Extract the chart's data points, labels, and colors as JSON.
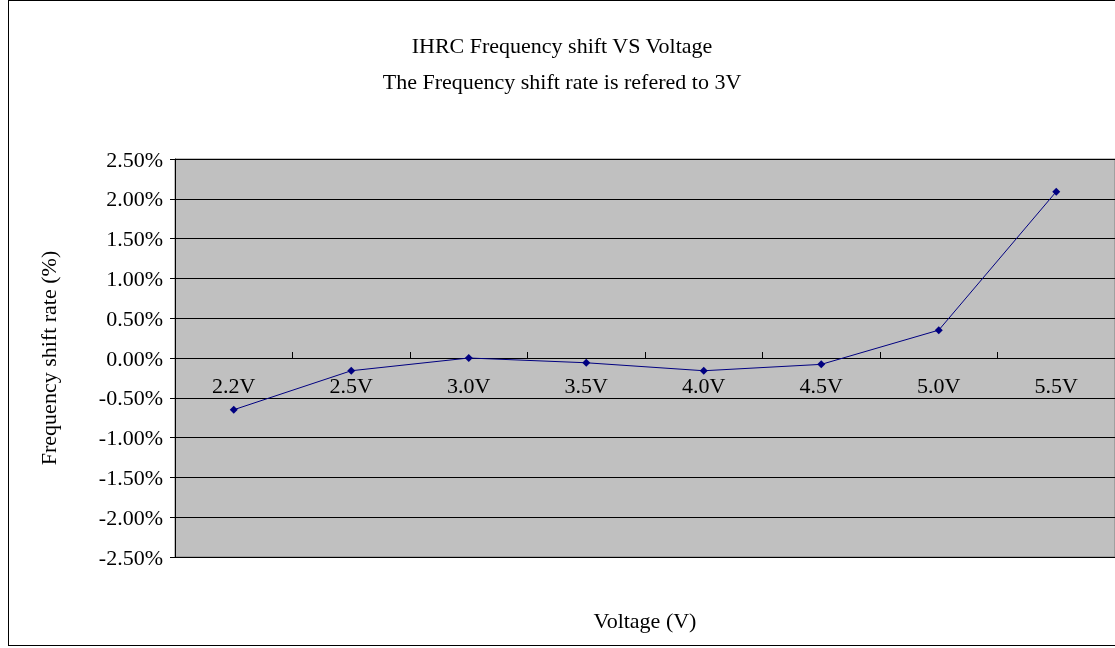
{
  "chart_data": {
    "type": "line",
    "title": "IHRC Frequency shift VS Voltage",
    "subtitle": "The Frequency shift rate is refered to 3V",
    "xlabel": "Voltage (V)",
    "ylabel": "Frequency shift rate (%)",
    "categories": [
      "2.2V",
      "2.5V",
      "3.0V",
      "3.5V",
      "4.0V",
      "4.5V",
      "5.0V",
      "5.5V"
    ],
    "series": [
      {
        "color": "#000080",
        "values": [
          -0.65,
          -0.16,
          0,
          -0.06,
          -0.16,
          -0.08,
          0.35,
          2.09
        ]
      }
    ],
    "ylim": [
      -2.5,
      2.5
    ],
    "yticks": [
      {
        "value": -2.5,
        "label": "-2.50%"
      },
      {
        "value": -2,
        "label": "-2.00%"
      },
      {
        "value": -1.5,
        "label": "-1.50%"
      },
      {
        "value": -1,
        "label": "-1.00%"
      },
      {
        "value": -0.5,
        "label": "-0.50%"
      },
      {
        "value": 0,
        "label": "0.00%"
      },
      {
        "value": 0.5,
        "label": "0.50%"
      },
      {
        "value": 1,
        "label": "1.00%"
      },
      {
        "value": 1.5,
        "label": "1.50%"
      },
      {
        "value": 2,
        "label": "2.00%"
      },
      {
        "value": 2.5,
        "label": "2.50%"
      }
    ],
    "grid": "y",
    "marker": "diamond",
    "line_style": "solid"
  }
}
